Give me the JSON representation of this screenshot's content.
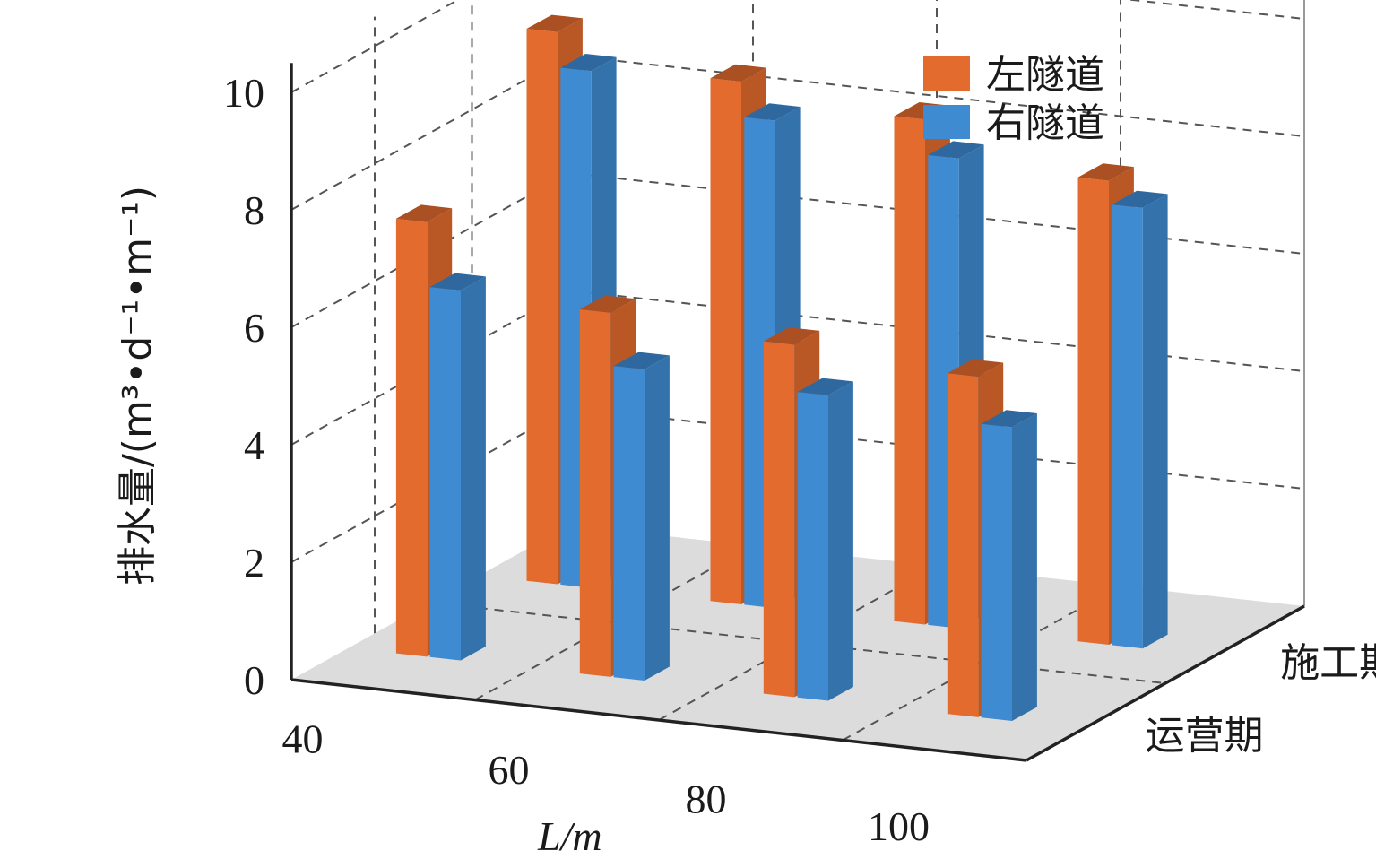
{
  "chart_data": {
    "type": "bar3d",
    "x_categories": [
      "40",
      "60",
      "80",
      "100"
    ],
    "depth_categories": [
      "施工期",
      "运营期"
    ],
    "series": [
      {
        "name": "左隧道",
        "color": "#e26b2d",
        "values": {
          "施工期": [
            9.4,
            8.9,
            8.6,
            7.9
          ],
          "运营期": [
            7.4,
            6.2,
            6.0,
            5.8
          ]
        }
      },
      {
        "name": "右隧道",
        "color": "#3f8bd2",
        "values": {
          "施工期": [
            8.8,
            8.3,
            8.0,
            7.5
          ],
          "运营期": [
            6.3,
            5.3,
            5.2,
            5.0
          ]
        }
      }
    ],
    "xlabel": "L/m",
    "ylabel": "排水量/(m³•d⁻¹•m⁻¹)",
    "ylim": [
      0,
      10
    ],
    "y_ticks": [
      "0",
      "2",
      "4",
      "6",
      "8",
      "10"
    ],
    "legend_position": "top-right",
    "grid": true
  }
}
